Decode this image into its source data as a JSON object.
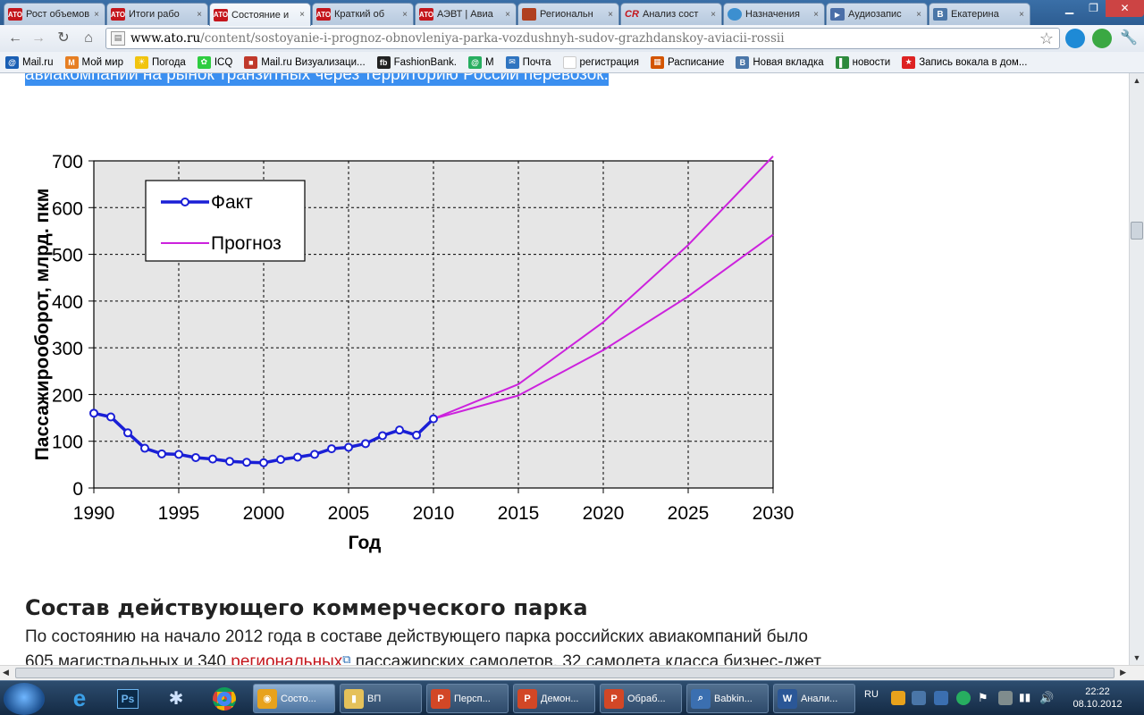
{
  "tabs": [
    {
      "fav": "АТО",
      "icon": "ato-favicon",
      "title": "Рост объемов"
    },
    {
      "fav": "АТО",
      "icon": "ato-favicon",
      "title": "Итоги рабо"
    },
    {
      "fav": "АТО",
      "icon": "ato-favicon",
      "title": "Состояние и"
    },
    {
      "fav": "АТО",
      "icon": "ato-favicon",
      "title": "Краткий об"
    },
    {
      "fav": "АТО",
      "icon": "ato-favicon",
      "title": "АЭВТ | Авиа"
    },
    {
      "fav": "",
      "icon": "image-favicon",
      "title": "Региональн"
    },
    {
      "fav": "CR",
      "icon": "cr-favicon",
      "title": "Анализ сост"
    },
    {
      "fav": "",
      "icon": "globe-favicon",
      "title": "Назначения"
    },
    {
      "fav": "▶",
      "icon": "audio-favicon",
      "title": "Аудиозапис"
    },
    {
      "fav": "В",
      "icon": "vk-favicon",
      "title": "Екатерина"
    }
  ],
  "address": {
    "host": "www.ato.ru",
    "path": "/content/sostoyanie-i-prognoz-obnovleniya-parka-vozdushnyh-sudov-grazhdanskoy-aviacii-rossii"
  },
  "bookmarks": [
    {
      "label": "Mail.ru",
      "icon": "mailru-icon",
      "color": "#1a5fb4",
      "glyph": "@"
    },
    {
      "label": "Мой мир",
      "icon": "moimir-icon",
      "color": "#e67e22",
      "glyph": "М"
    },
    {
      "label": "Погода",
      "icon": "weather-icon",
      "color": "#f1c40f",
      "glyph": "☀"
    },
    {
      "label": "ICQ",
      "icon": "icq-icon",
      "color": "#2ecc40",
      "glyph": "✿"
    },
    {
      "label": "Mail.ru Визуализаци...",
      "icon": "mailru-visual-icon",
      "color": "#c0392b",
      "glyph": "■"
    },
    {
      "label": "FashionBank.",
      "icon": "fashionbank-icon",
      "color": "#222222",
      "glyph": "fb"
    },
    {
      "label": "М",
      "icon": "agent-icon",
      "color": "#27ae60",
      "glyph": "@"
    },
    {
      "label": "Почта",
      "icon": "mail-icon",
      "color": "#2f74c0",
      "glyph": "✉"
    },
    {
      "label": "регистрация",
      "icon": "blank-page-icon",
      "color": "#ffffff",
      "glyph": ""
    },
    {
      "label": "Расписание",
      "icon": "schedule-icon",
      "color": "#d35400",
      "glyph": "▦"
    },
    {
      "label": "Новая вкладка",
      "icon": "vk-icon",
      "color": "#4a76a8",
      "glyph": "В"
    },
    {
      "label": "новости",
      "icon": "news-icon",
      "color": "#2d8a3c",
      "glyph": "▌"
    },
    {
      "label": "Запись вокала в дом...",
      "icon": "star-red-icon",
      "color": "#d22",
      "glyph": "★"
    }
  ],
  "page": {
    "highlight_line": "авиакомпаний на рынок транзитных через территорию России перевозок.",
    "section_heading": "Состав действующего коммерческого парка",
    "para_line1": "По состоянию на начало 2012 года в составе действующего парка российских авиакомпаний было",
    "para_line2_a": "605 магистральных и 340 ",
    "para_line2_link": "региональных",
    "para_line2_b": " пассажирских самолетов, 32 самолета класса бизнес-джет"
  },
  "chart_data": {
    "type": "line",
    "title": "",
    "xlabel": "Год",
    "ylabel": "Пассажирооборот, млрд. пкм",
    "xlim": [
      1990,
      2030
    ],
    "ylim": [
      0,
      700
    ],
    "xticks": [
      1990,
      1995,
      2000,
      2005,
      2010,
      2015,
      2020,
      2025,
      2030
    ],
    "yticks": [
      0,
      100,
      200,
      300,
      400,
      500,
      600,
      700
    ],
    "grid": true,
    "legend_position": "top-left",
    "series": [
      {
        "name": "Факт",
        "color": "#1a1fd6",
        "markers": true,
        "x": [
          1990,
          1991,
          1992,
          1993,
          1994,
          1995,
          1996,
          1997,
          1998,
          1999,
          2000,
          2001,
          2002,
          2003,
          2004,
          2005,
          2006,
          2007,
          2008,
          2009,
          2010
        ],
        "values": [
          160,
          152,
          118,
          85,
          73,
          72,
          65,
          62,
          57,
          55,
          54,
          61,
          66,
          72,
          84,
          87,
          95,
          112,
          124,
          113,
          148
        ]
      },
      {
        "name": "Прогноз",
        "color": "#cc22dd",
        "markers": false,
        "x": [
          2010,
          2015,
          2020,
          2025,
          2030
        ],
        "values": [
          148,
          222,
          355,
          520,
          710
        ]
      },
      {
        "name": "",
        "color": "#cc22dd",
        "markers": false,
        "x": [
          2010,
          2015,
          2020,
          2025,
          2030
        ],
        "values": [
          148,
          198,
          295,
          410,
          542
        ]
      }
    ]
  },
  "taskbar": {
    "tasks": [
      {
        "label": "Состо...",
        "icon": "chrome-task-icon",
        "color": "#e8a21c",
        "glyph": "◉",
        "active": true
      },
      {
        "label": "ВП",
        "icon": "folder-icon",
        "color": "#e5c15a",
        "glyph": "▮",
        "active": false
      },
      {
        "label": "Персп...",
        "icon": "powerpoint-icon",
        "color": "#d24726",
        "glyph": "P",
        "active": false
      },
      {
        "label": "Демон...",
        "icon": "powerpoint-icon",
        "color": "#d24726",
        "glyph": "P",
        "active": false
      },
      {
        "label": "Обраб...",
        "icon": "powerpoint-icon",
        "color": "#d24726",
        "glyph": "P",
        "active": false
      },
      {
        "label": "Babkin...",
        "icon": "viewer-icon",
        "color": "#3b6fb0",
        "glyph": "⌕",
        "active": false
      },
      {
        "label": "Анали...",
        "icon": "word-icon",
        "color": "#2b5797",
        "glyph": "W",
        "active": false
      }
    ],
    "lang": "RU",
    "time": "22:22",
    "date": "08.10.2012"
  }
}
